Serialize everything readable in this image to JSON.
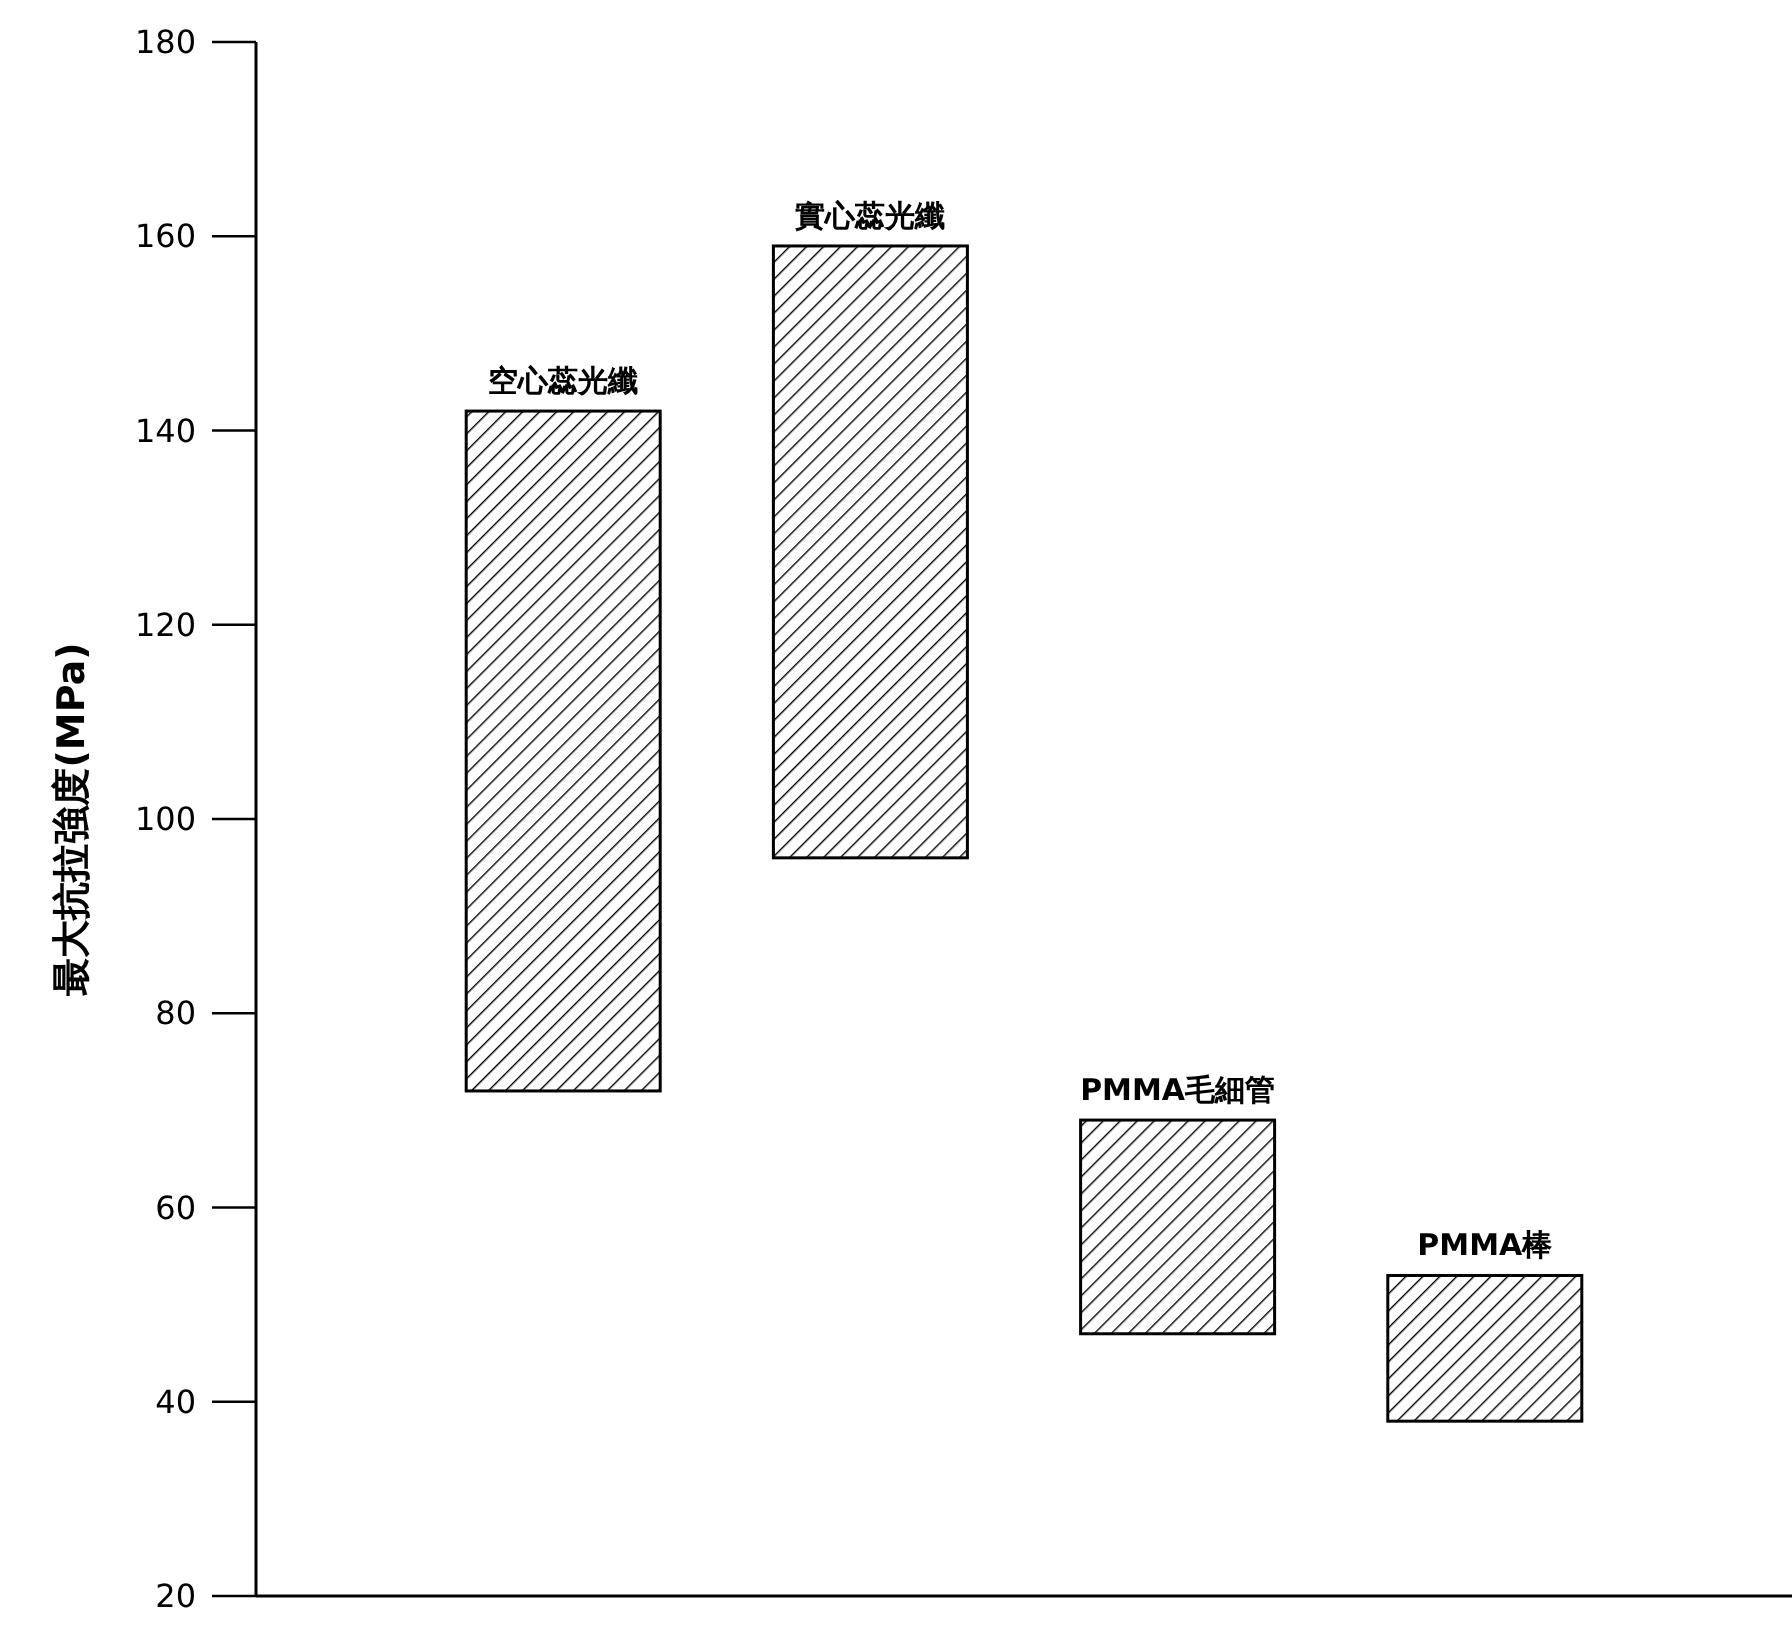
{
  "chart_data": {
    "type": "bar",
    "categories": [
      "空心蕊光纖",
      "實心蕊光纖",
      "PMMA毛細管",
      "PMMA棒"
    ],
    "base": [
      72,
      96,
      47,
      38
    ],
    "values": [
      70,
      63,
      22,
      15
    ],
    "color": "#000000",
    "ylabel": "最大抗拉強度(MPa)",
    "ylim": [
      20,
      180
    ],
    "yticks": [
      20,
      40,
      60,
      80,
      100,
      120,
      140,
      160,
      180
    ]
  }
}
